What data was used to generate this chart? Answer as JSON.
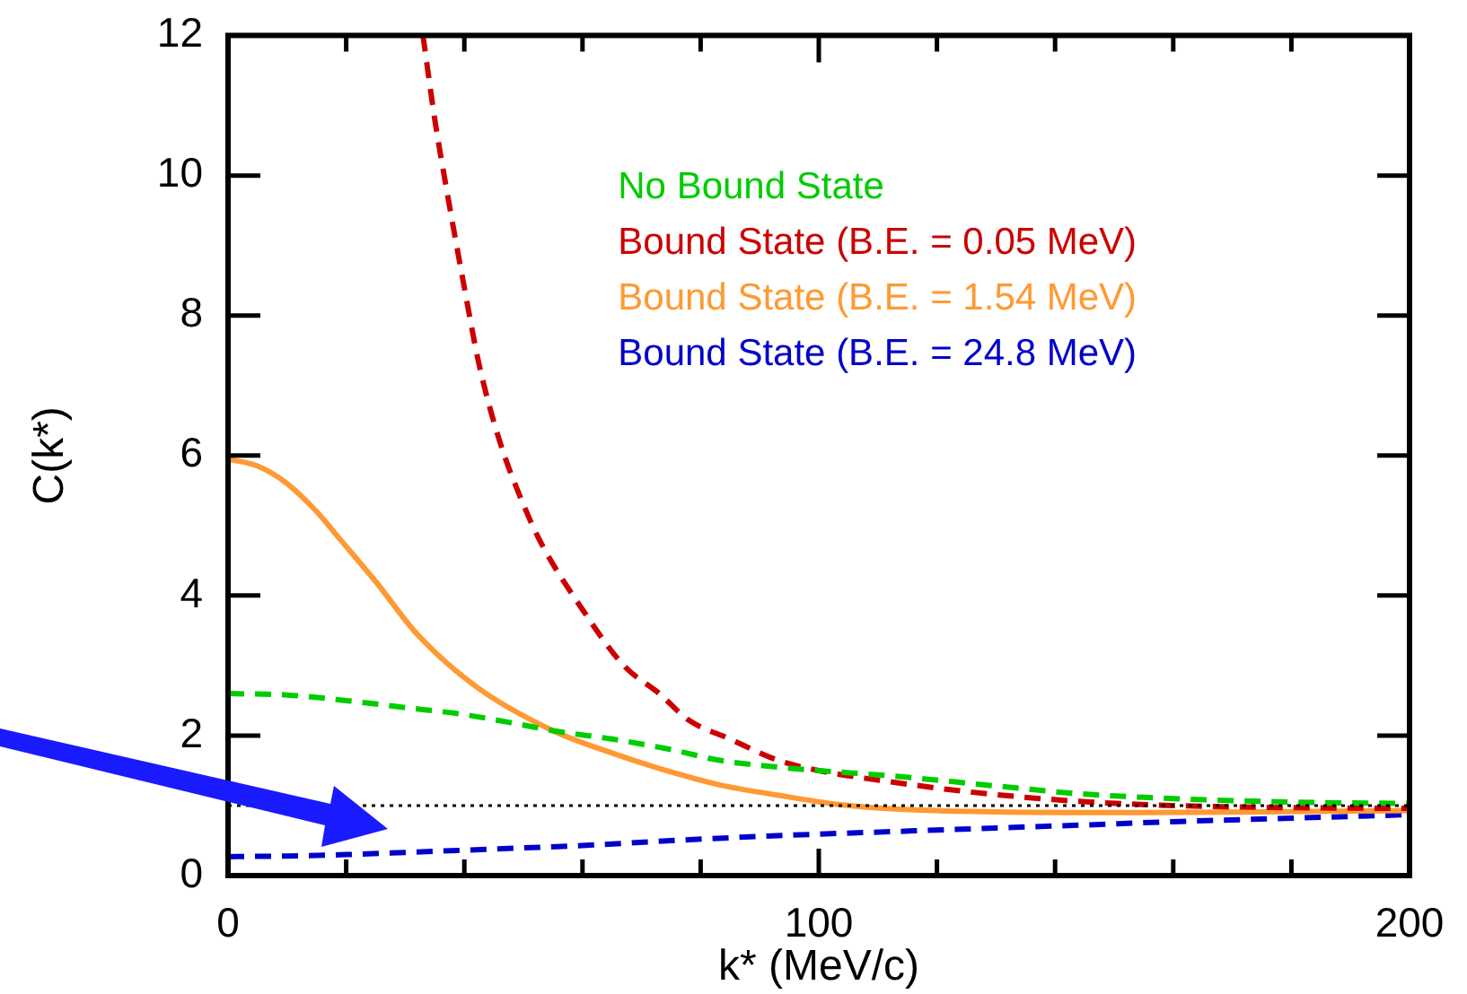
{
  "chart_data": {
    "type": "line",
    "xlabel": "k* (MeV/c)",
    "ylabel": "C(k*)",
    "xlim": [
      0,
      200
    ],
    "ylim": [
      0,
      12
    ],
    "xticks": [
      0,
      {
        "value": 20,
        "label": null
      },
      {
        "value": 40,
        "label": null
      },
      {
        "value": 60,
        "label": null
      },
      {
        "value": 80,
        "label": null
      },
      100,
      {
        "value": 120,
        "label": null
      },
      {
        "value": 140,
        "label": null
      },
      {
        "value": 160,
        "label": null
      },
      {
        "value": 180,
        "label": null
      },
      200
    ],
    "yticks": [
      0,
      2,
      4,
      6,
      8,
      10,
      12
    ],
    "legend": "top right",
    "marker": "none",
    "ref_lines": [
      {
        "axis": "y",
        "value": 1,
        "color": "#000000",
        "line_style": "dotted"
      }
    ],
    "series": [
      {
        "name": "No Bound State",
        "color": "#00cc00",
        "line_style": "dashed",
        "x": [
          0,
          10,
          20,
          30,
          40,
          50,
          55,
          65,
          75,
          83,
          93,
          100,
          113,
          130,
          144,
          160,
          180,
          200
        ],
        "values": [
          2.6,
          2.58,
          2.5,
          2.4,
          2.3,
          2.15,
          2.07,
          1.95,
          1.8,
          1.65,
          1.55,
          1.5,
          1.42,
          1.28,
          1.17,
          1.1,
          1.05,
          1.03
        ]
      },
      {
        "name": "Bound State (B.E. = 0.05 MeV)",
        "color": "#cc0000",
        "line_style": "dashed",
        "x": [
          33,
          35,
          37,
          40,
          42.5,
          46,
          50,
          53,
          60,
          67,
          73,
          78,
          85,
          93,
          100,
          113,
          125,
          144,
          160,
          180,
          200
        ],
        "values": [
          12,
          10.8,
          9.8,
          8.4,
          7.3,
          6.2,
          5.3,
          4.75,
          3.8,
          3.0,
          2.6,
          2.22,
          1.95,
          1.65,
          1.5,
          1.33,
          1.2,
          1.06,
          1.0,
          0.97,
          0.96
        ]
      },
      {
        "name": "Bound State (B.E. = 1.54 MeV)",
        "color": "#ff9933",
        "line_style": "solid",
        "x": [
          0,
          5,
          10,
          15,
          19,
          25,
          32,
          42,
          55,
          65,
          73,
          83,
          93,
          103,
          113,
          130,
          150,
          175,
          200
        ],
        "values": [
          5.95,
          5.85,
          5.6,
          5.2,
          4.8,
          4.2,
          3.45,
          2.7,
          2.07,
          1.75,
          1.53,
          1.3,
          1.15,
          1.02,
          0.95,
          0.91,
          0.9,
          0.91,
          0.93
        ]
      },
      {
        "name": "Bound State (B.E. = 24.8 MeV)",
        "color": "#0000cc",
        "line_style": "dashed",
        "x": [
          0,
          10,
          20,
          30,
          45,
          60,
          75,
          93,
          113,
          130,
          144,
          160,
          180,
          200
        ],
        "values": [
          0.27,
          0.28,
          0.3,
          0.33,
          0.38,
          0.43,
          0.5,
          0.57,
          0.63,
          0.68,
          0.72,
          0.77,
          0.82,
          0.87
        ]
      }
    ]
  }
}
